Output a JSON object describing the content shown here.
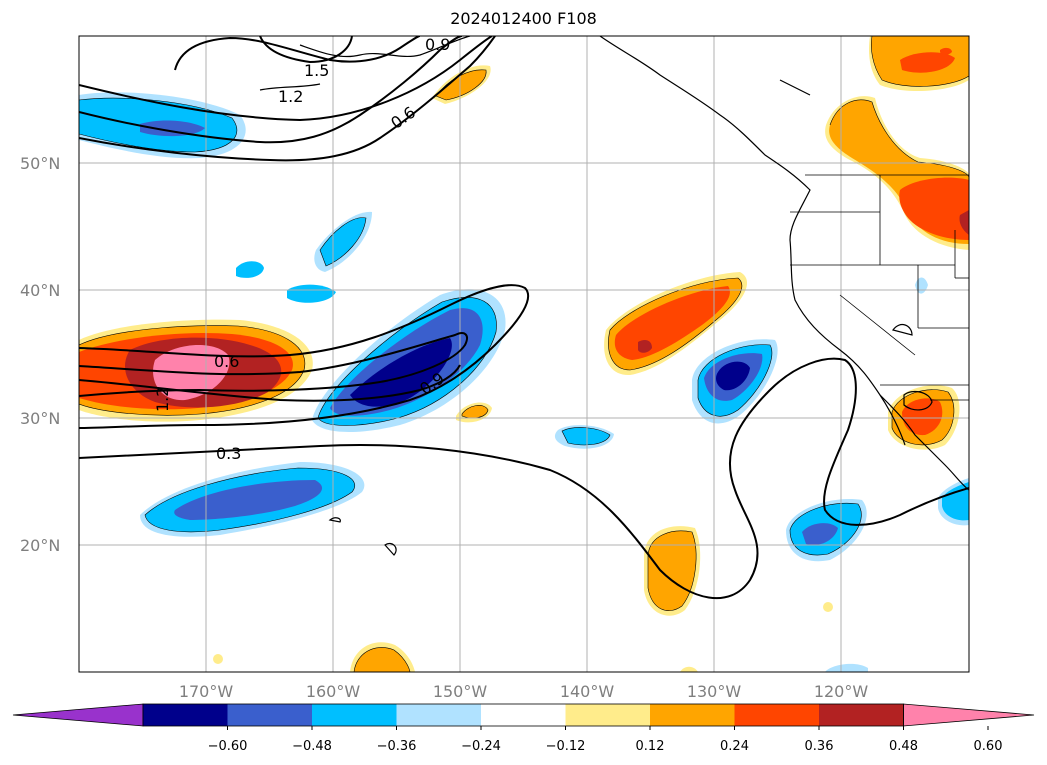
{
  "title": "2024012400 F108",
  "lat_labels": [
    "50°N",
    "40°N",
    "30°N",
    "20°N"
  ],
  "lon_labels": [
    "170°W",
    "160°W",
    "150°W",
    "140°W",
    "130°W",
    "120°W"
  ],
  "contour_labels": [
    "1.5",
    "1.2",
    "0.9",
    "0.6",
    "0.6",
    "1.2",
    "0.9",
    "0.3"
  ],
  "colorbar": {
    "ticks": [
      "−0.60",
      "−0.48",
      "−0.36",
      "−0.24",
      "−0.12",
      "0.12",
      "0.24",
      "0.36",
      "0.48",
      "0.60"
    ],
    "colors": [
      "#9932cc",
      "#00008b",
      "#3a5fcd",
      "#00bfff",
      "#b0e2ff",
      "#ffffff",
      "#ffec8b",
      "#ffa500",
      "#ff4500",
      "#b22222",
      "#ff82ab"
    ]
  }
}
